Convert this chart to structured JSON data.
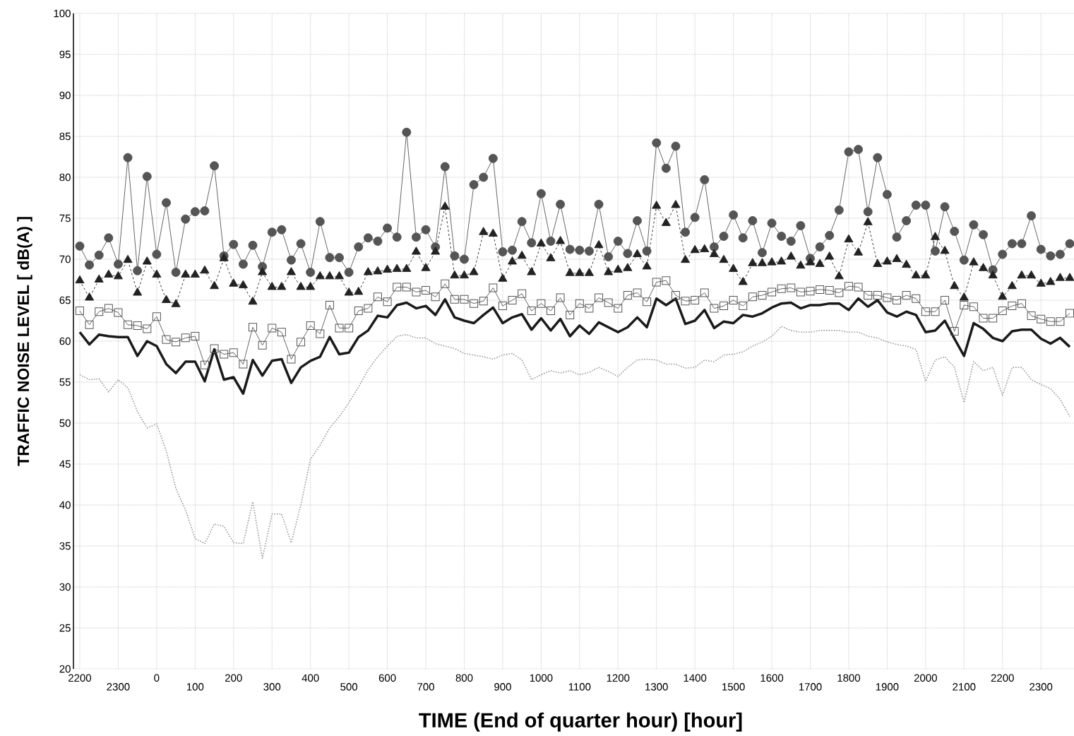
{
  "chart_data": {
    "type": "line",
    "xlabel": "TIME  (End of quarter hour)  [hour]",
    "ylabel": "TRAFFIC NOISE LEVEL  [ dB(A) ]",
    "ylim": [
      20,
      100
    ],
    "yticks": [
      20,
      25,
      30,
      35,
      40,
      45,
      50,
      55,
      60,
      65,
      70,
      75,
      80,
      85,
      90,
      95,
      100
    ],
    "grid": true,
    "categories": [
      "2200",
      null,
      null,
      null,
      "2300",
      null,
      null,
      null,
      "0",
      null,
      null,
      null,
      "100",
      null,
      null,
      null,
      "200",
      null,
      null,
      null,
      "300",
      null,
      null,
      null,
      "400",
      null,
      null,
      null,
      "500",
      null,
      null,
      null,
      "600",
      null,
      null,
      null,
      "700",
      null,
      null,
      null,
      "800",
      null,
      null,
      null,
      "900",
      null,
      null,
      null,
      "1000",
      null,
      null,
      null,
      "1100",
      null,
      null,
      null,
      "1200",
      null,
      null,
      null,
      "1300",
      null,
      null,
      null,
      "1400",
      null,
      null,
      null,
      "1500",
      null,
      null,
      null,
      "1600",
      null,
      null,
      null,
      "1700",
      null,
      null,
      null,
      "1800",
      null,
      null,
      null,
      "1900",
      null,
      null,
      null,
      "2000",
      null,
      null,
      null,
      "2100",
      null,
      null,
      null,
      "2200",
      null,
      null,
      null,
      "2300",
      null,
      null,
      null
    ],
    "series": [
      {
        "color": "#555555",
        "marker": "circle",
        "line_style": "solid",
        "values": [
          71.6,
          69.3,
          70.5,
          72.6,
          69.4,
          82.4,
          68.6,
          80.1,
          70.6,
          76.9,
          68.4,
          74.9,
          75.8,
          75.9,
          81.4,
          70.4,
          71.8,
          69.4,
          71.7,
          69.1,
          73.3,
          73.6,
          69.9,
          71.9,
          68.4,
          74.6,
          70.2,
          70.2,
          68.4,
          71.5,
          72.6,
          72.2,
          73.8,
          72.7,
          85.5,
          72.7,
          73.6,
          71.5,
          81.3,
          70.4,
          70.0,
          79.1,
          80.0,
          82.3,
          70.9,
          71.1,
          74.6,
          72.0,
          78.0,
          72.2,
          76.7,
          71.2,
          71.1,
          71.0,
          76.7,
          70.3,
          72.2,
          70.7,
          74.7,
          71.0,
          84.2,
          81.1,
          83.8,
          73.3,
          75.1,
          79.7,
          71.5,
          72.8,
          75.4,
          72.6,
          74.7,
          70.8,
          74.4,
          72.8,
          72.2,
          74.1,
          70.1,
          71.5,
          72.9,
          76.0,
          83.1,
          83.4,
          75.8,
          82.4,
          77.9,
          72.7,
          74.7,
          76.6,
          76.6,
          71.0,
          76.4,
          73.4,
          69.9,
          74.2,
          73.0,
          68.7,
          70.6,
          71.9,
          71.9,
          75.3,
          71.2,
          70.4,
          70.6,
          71.9
        ]
      },
      {
        "color": "#222222",
        "marker": "triangle",
        "line_style": "dashed",
        "values": [
          67.4,
          65.3,
          67.5,
          68.1,
          67.9,
          69.9,
          65.9,
          69.7,
          68.1,
          65.0,
          64.5,
          68.1,
          68.1,
          68.6,
          66.7,
          70.1,
          67.0,
          66.8,
          64.8,
          68.4,
          66.6,
          66.6,
          68.4,
          66.6,
          66.6,
          67.9,
          67.9,
          67.9,
          65.9,
          66.0,
          68.4,
          68.5,
          68.7,
          68.8,
          68.8,
          70.9,
          68.9,
          70.9,
          76.4,
          68.0,
          68.0,
          68.4,
          73.3,
          73.1,
          67.6,
          69.7,
          70.4,
          68.4,
          71.9,
          70.1,
          72.2,
          68.3,
          68.3,
          68.3,
          71.7,
          68.4,
          68.7,
          68.9,
          70.6,
          69.1,
          76.5,
          74.4,
          76.6,
          69.9,
          71.1,
          71.2,
          70.6,
          69.9,
          68.8,
          67.2,
          69.5,
          69.5,
          69.6,
          69.7,
          70.3,
          69.2,
          69.6,
          69.4,
          70.3,
          67.9,
          72.4,
          70.8,
          74.5,
          69.4,
          69.7,
          70.0,
          69.3,
          68.0,
          68.0,
          72.7,
          71.0,
          66.7,
          65.3,
          69.6,
          68.9,
          68.0,
          65.4,
          66.7,
          68.0,
          68.0,
          67.0,
          67.2,
          67.7,
          67.7
        ]
      },
      {
        "color": "#555555",
        "marker": "square",
        "line_style": "solid",
        "values": [
          63.7,
          62.0,
          63.6,
          64.0,
          63.5,
          62.0,
          61.9,
          61.5,
          63.0,
          60.2,
          59.9,
          60.4,
          60.6,
          57.1,
          59.1,
          58.4,
          58.6,
          57.2,
          61.7,
          59.5,
          61.6,
          61.1,
          57.8,
          59.9,
          61.9,
          60.9,
          64.4,
          61.6,
          61.6,
          63.7,
          64.0,
          65.4,
          64.8,
          66.6,
          66.6,
          66.0,
          66.2,
          65.4,
          67.0,
          65.1,
          65.1,
          64.6,
          64.9,
          66.5,
          64.3,
          65.0,
          65.8,
          63.7,
          64.6,
          63.7,
          65.3,
          63.2,
          64.6,
          64.0,
          65.3,
          64.7,
          64.0,
          65.6,
          65.9,
          64.8,
          67.2,
          67.4,
          65.6,
          64.9,
          65.0,
          65.9,
          64.0,
          64.3,
          65.0,
          64.3,
          65.4,
          65.6,
          66.0,
          66.4,
          66.5,
          66.0,
          66.1,
          66.3,
          66.2,
          65.9,
          66.7,
          66.6,
          65.6,
          65.6,
          65.3,
          65.0,
          65.6,
          65.2,
          63.6,
          63.6,
          65.0,
          61.2,
          64.4,
          64.2,
          62.8,
          62.8,
          63.7,
          64.3,
          64.6,
          63.1,
          62.7,
          62.4,
          62.4,
          63.4
        ]
      },
      {
        "color": "#1a1a1a",
        "marker": "none",
        "line_style": "solid",
        "values": [
          61.1,
          59.6,
          60.8,
          60.6,
          60.5,
          60.5,
          58.2,
          60.0,
          59.4,
          57.2,
          56.1,
          57.5,
          57.5,
          55.1,
          59.0,
          55.3,
          55.6,
          53.6,
          57.7,
          55.8,
          57.6,
          57.8,
          54.9,
          56.8,
          57.6,
          58.1,
          60.5,
          58.4,
          58.6,
          60.5,
          61.3,
          63.1,
          62.9,
          64.4,
          64.7,
          64.0,
          64.3,
          63.2,
          65.1,
          62.9,
          62.5,
          62.2,
          63.2,
          64.1,
          62.2,
          62.9,
          63.3,
          61.4,
          62.8,
          61.3,
          62.7,
          60.6,
          61.9,
          60.9,
          62.3,
          61.7,
          61.1,
          61.7,
          62.9,
          61.7,
          65.2,
          64.4,
          65.2,
          62.1,
          62.5,
          63.8,
          61.6,
          62.4,
          62.2,
          63.2,
          63.0,
          63.4,
          64.1,
          64.6,
          64.7,
          64.0,
          64.4,
          64.4,
          64.6,
          64.6,
          63.8,
          65.2,
          64.2,
          65.0,
          63.5,
          63.0,
          63.6,
          63.2,
          61.1,
          61.3,
          62.5,
          60.3,
          58.2,
          62.2,
          61.5,
          60.4,
          60.0,
          61.2,
          61.4,
          61.4,
          60.3,
          59.7,
          60.4,
          59.3
        ]
      },
      {
        "color": "#999999",
        "marker": "none",
        "line_style": "dotted",
        "values": [
          55.9,
          55.3,
          55.4,
          53.8,
          55.3,
          54.3,
          51.4,
          49.4,
          49.9,
          46.6,
          42.0,
          39.4,
          35.9,
          35.3,
          37.7,
          37.4,
          35.4,
          35.3,
          40.4,
          33.5,
          38.9,
          38.9,
          35.4,
          40.0,
          45.6,
          47.3,
          49.4,
          50.8,
          52.5,
          54.4,
          56.5,
          58.1,
          59.4,
          60.6,
          60.8,
          60.4,
          60.4,
          59.7,
          59.4,
          59.1,
          58.5,
          58.3,
          58.1,
          57.8,
          58.3,
          58.5,
          57.7,
          55.3,
          55.9,
          56.4,
          56.1,
          56.4,
          55.9,
          56.2,
          56.8,
          56.3,
          55.7,
          56.8,
          57.7,
          57.8,
          57.7,
          57.2,
          57.2,
          56.7,
          56.8,
          57.7,
          57.5,
          58.3,
          58.4,
          58.7,
          59.4,
          59.9,
          60.6,
          61.8,
          61.3,
          61.1,
          61.1,
          61.3,
          61.3,
          61.3,
          61.1,
          61.1,
          60.6,
          60.4,
          59.9,
          59.6,
          59.4,
          59.0,
          55.1,
          57.7,
          58.1,
          56.8,
          52.5,
          57.5,
          56.4,
          56.8,
          53.4,
          56.8,
          56.8,
          55.3,
          54.7,
          54.2,
          52.9,
          50.8
        ]
      }
    ]
  }
}
